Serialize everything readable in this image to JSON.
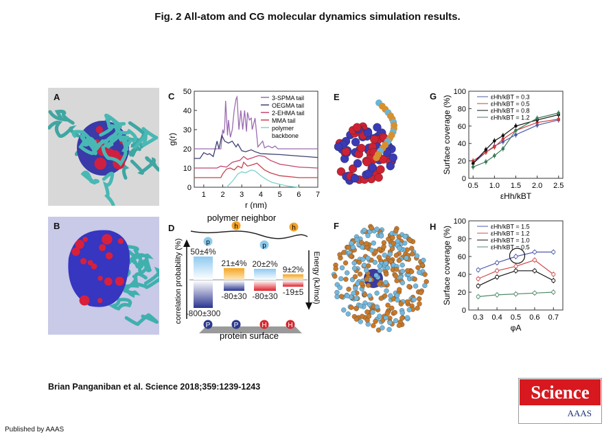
{
  "title": "Fig. 2 All-atom and CG molecular dynamics simulation results.",
  "citation": "Brian Panganiban et al. Science 2018;359:1239-1243",
  "publisher": "Published by AAAS",
  "logo": {
    "name": "Science",
    "sub": "AAAS"
  },
  "panels": {
    "A": "A",
    "B": "B",
    "C": "C",
    "D": "D",
    "E": "E",
    "F": "F",
    "G": "G",
    "H": "H"
  },
  "panel_d": {
    "top_label": "polymer neighbor",
    "bottom_label": "protein surface",
    "left_axis": "correlation probability (%)",
    "right_axis": "Energy (kJ/mol)",
    "polymer_beads": [
      "h",
      "p",
      "p",
      "h"
    ],
    "surface_beads": [
      "P",
      "P",
      "H",
      "H"
    ],
    "probabilities": [
      "50±4%",
      "21±4%",
      "20±2%",
      "9±2%"
    ],
    "energies": [
      "-800±300",
      "-80±30",
      "-80±30",
      "-19±5"
    ],
    "prob_values": [
      50,
      21,
      20,
      9
    ],
    "energy_values": [
      -800,
      -80,
      -80,
      -19
    ]
  },
  "chart_data": [
    {
      "panel": "C",
      "type": "line",
      "xlabel": "r (nm)",
      "ylabel": "g(r)",
      "xlim": [
        0.5,
        7
      ],
      "ylim": [
        0,
        50
      ],
      "xticks": [
        1,
        2,
        3,
        4,
        5,
        6,
        7
      ],
      "yticks": [
        0,
        10,
        20,
        30,
        40,
        50
      ],
      "legend": "top-right",
      "series": [
        {
          "name": "3-SPMA tail",
          "color": "#9b6bb0",
          "points": [
            [
              0.5,
              20
            ],
            [
              1.9,
              20
            ],
            [
              2.0,
              30
            ],
            [
              2.05,
              28
            ],
            [
              2.1,
              31
            ],
            [
              2.15,
              45
            ],
            [
              2.25,
              27
            ],
            [
              2.3,
              35
            ],
            [
              2.4,
              26
            ],
            [
              2.5,
              30
            ],
            [
              2.6,
              40
            ],
            [
              2.7,
              46
            ],
            [
              2.75,
              47
            ],
            [
              2.85,
              30
            ],
            [
              2.95,
              40
            ],
            [
              3.05,
              30
            ],
            [
              3.15,
              40
            ],
            [
              3.25,
              29
            ],
            [
              3.3,
              39
            ],
            [
              3.4,
              35
            ],
            [
              3.5,
              36
            ],
            [
              3.55,
              30
            ],
            [
              3.7,
              36
            ],
            [
              3.85,
              21
            ],
            [
              4.1,
              24
            ],
            [
              4.2,
              20.5
            ],
            [
              4.4,
              21.5
            ],
            [
              4.6,
              20.5
            ],
            [
              4.75,
              21.5
            ],
            [
              4.9,
              20
            ],
            [
              7,
              20
            ]
          ]
        },
        {
          "name": "OEGMA tail",
          "color": "#3d3f6e",
          "points": [
            [
              0.5,
              15
            ],
            [
              0.8,
              15
            ],
            [
              1.0,
              18
            ],
            [
              1.2,
              17
            ],
            [
              1.3,
              17.5
            ],
            [
              1.5,
              16
            ],
            [
              1.7,
              24
            ],
            [
              1.8,
              20
            ],
            [
              1.95,
              27
            ],
            [
              2.1,
              24
            ],
            [
              2.3,
              23
            ],
            [
              2.5,
              24
            ],
            [
              2.7,
              21
            ],
            [
              2.8,
              22.5
            ],
            [
              3.0,
              19
            ],
            [
              3.2,
              18.5
            ],
            [
              3.5,
              19.5
            ],
            [
              3.7,
              18.5
            ],
            [
              4,
              17.5
            ],
            [
              5,
              17
            ],
            [
              7,
              15.5
            ]
          ]
        },
        {
          "name": "2-EHMA tail",
          "color": "#c2456e",
          "points": [
            [
              0.5,
              10
            ],
            [
              1.7,
              10
            ],
            [
              1.9,
              11
            ],
            [
              2.2,
              10.5
            ],
            [
              2.5,
              13
            ],
            [
              2.9,
              14
            ],
            [
              3.1,
              16
            ],
            [
              3.3,
              14.5
            ],
            [
              3.6,
              15.5
            ],
            [
              3.9,
              16.5
            ],
            [
              4.2,
              16
            ],
            [
              4.5,
              14
            ],
            [
              5,
              12
            ],
            [
              6,
              10.5
            ],
            [
              7,
              10
            ]
          ]
        },
        {
          "name": "MMA tail",
          "color": "#c8404a",
          "points": [
            [
              0.5,
              5
            ],
            [
              1.9,
              5
            ],
            [
              2.0,
              7
            ],
            [
              2.2,
              9.5
            ],
            [
              2.4,
              10
            ],
            [
              2.6,
              9
            ],
            [
              2.8,
              11
            ],
            [
              3.0,
              10
            ],
            [
              3.1,
              13
            ],
            [
              3.3,
              11
            ],
            [
              3.5,
              11.5
            ],
            [
              3.8,
              12.5
            ],
            [
              4.2,
              9
            ],
            [
              4.5,
              7.5
            ],
            [
              5,
              6
            ],
            [
              6,
              5
            ],
            [
              7,
              5
            ]
          ]
        },
        {
          "name": "polymer backbone",
          "color": "#7fd0cc",
          "points": [
            [
              2.2,
              0
            ],
            [
              2.5,
              3
            ],
            [
              2.8,
              7
            ],
            [
              3.0,
              8
            ],
            [
              3.2,
              7.5
            ],
            [
              3.5,
              9
            ],
            [
              3.7,
              8.5
            ],
            [
              4.0,
              6
            ],
            [
              4.3,
              4
            ],
            [
              4.6,
              2.5
            ],
            [
              5,
              1.5
            ],
            [
              5.5,
              0.5
            ],
            [
              6,
              0
            ]
          ]
        }
      ]
    },
    {
      "panel": "G",
      "type": "line",
      "xlabel": "εHh/kBT",
      "ylabel": "Surface coverage (%)",
      "xlim": [
        0.4,
        2.6
      ],
      "ylim": [
        0,
        100
      ],
      "xticks": [
        0.5,
        1.0,
        1.5,
        2.0,
        2.5
      ],
      "yticks": [
        0,
        20,
        40,
        60,
        80,
        100
      ],
      "legend": "top-left",
      "x": [
        0.5,
        0.8,
        1.0,
        1.2,
        1.5,
        2.0,
        2.5
      ],
      "series": [
        {
          "name": "εHh/kBT = 0.3",
          "color": "#4a5aa8",
          "values": [
            17,
            30,
            37,
            42,
            50,
            61,
            67
          ]
        },
        {
          "name": "εHh/kBT = 0.5",
          "color": "#d03a3a",
          "values": [
            20,
            30,
            36,
            45,
            55,
            64,
            68
          ]
        },
        {
          "name": "εHh/kBT = 0.8",
          "color": "#111111",
          "values": [
            17,
            33,
            43,
            49,
            60,
            67,
            73
          ]
        },
        {
          "name": "εHh/kBT = 1.2",
          "color": "#3d7a5a",
          "values": [
            13,
            19,
            26,
            34,
            55,
            69,
            75
          ]
        }
      ]
    },
    {
      "panel": "H",
      "type": "line",
      "xlabel": "φA",
      "ylabel": "Surface coverage (%)",
      "xlim": [
        0.25,
        0.75
      ],
      "ylim": [
        0,
        100
      ],
      "xticks": [
        0.3,
        0.4,
        0.5,
        0.6,
        0.7
      ],
      "yticks": [
        0,
        20,
        40,
        60,
        80,
        100
      ],
      "legend": "top-left",
      "x": [
        0.3,
        0.4,
        0.5,
        0.6,
        0.7
      ],
      "annotation": "circle at φA=0.5, 60%",
      "series": [
        {
          "name": "εHh/kBT = 1.5",
          "color": "#4a5aa8",
          "values": [
            45,
            53,
            60,
            65,
            65
          ]
        },
        {
          "name": "εHh/kBT = 1.2",
          "color": "#d04848",
          "values": [
            35,
            44,
            49,
            56,
            40
          ]
        },
        {
          "name": "εHh/kBT = 1.0",
          "color": "#111111",
          "values": [
            27,
            37,
            44,
            44,
            33
          ]
        },
        {
          "name": "εHh/kBT = 0.5",
          "color": "#4f8a68",
          "values": [
            15,
            17,
            18,
            19,
            20
          ]
        }
      ]
    }
  ]
}
